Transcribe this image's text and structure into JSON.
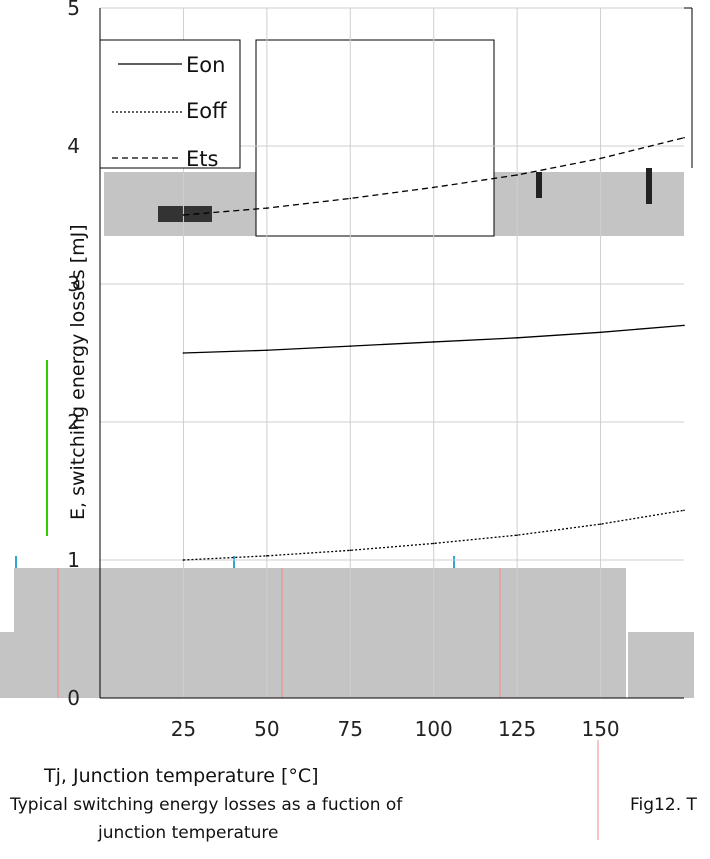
{
  "colors": {
    "background": "#ffffff",
    "grid": "#cfcfcf",
    "axis": "#000000",
    "series": "#000000",
    "occlusion": "#c4c4c4",
    "accent_green": "#33cc00",
    "accent_pink": "#f08a8a",
    "accent_blue": "#2fa6d6"
  },
  "chart_data": {
    "type": "line",
    "title": "",
    "xlabel": "Tj, Junction temperature [°C]",
    "ylabel": "E, switching energy losses [mJ]",
    "xlim": [
      0,
      175
    ],
    "ylim": [
      0,
      5
    ],
    "x_ticks": [
      "25",
      "50",
      "75",
      "100",
      "125",
      "150"
    ],
    "y_ticks": [
      "0",
      "1",
      "2",
      "3",
      "4",
      "5"
    ],
    "legend_placement": "top-left",
    "grid": true,
    "series": [
      {
        "name": "Eon",
        "style": "solid",
        "x": [
          25,
          50,
          75,
          100,
          125,
          150,
          175
        ],
        "y": [
          2.5,
          2.52,
          2.55,
          2.58,
          2.61,
          2.65,
          2.7
        ]
      },
      {
        "name": "Eoff",
        "style": "dotted",
        "x": [
          25,
          50,
          75,
          100,
          125,
          150,
          175
        ],
        "y": [
          1.0,
          1.03,
          1.07,
          1.12,
          1.18,
          1.26,
          1.36
        ]
      },
      {
        "name": "Ets",
        "style": "dashed",
        "x": [
          25,
          50,
          75,
          100,
          125,
          150,
          175
        ],
        "y": [
          3.5,
          3.55,
          3.62,
          3.7,
          3.79,
          3.91,
          4.06
        ]
      }
    ],
    "caption": [
      "Typical switching energy losses as a fuction of",
      "junction temperature"
    ],
    "figure_ref": "Fig12. T"
  }
}
